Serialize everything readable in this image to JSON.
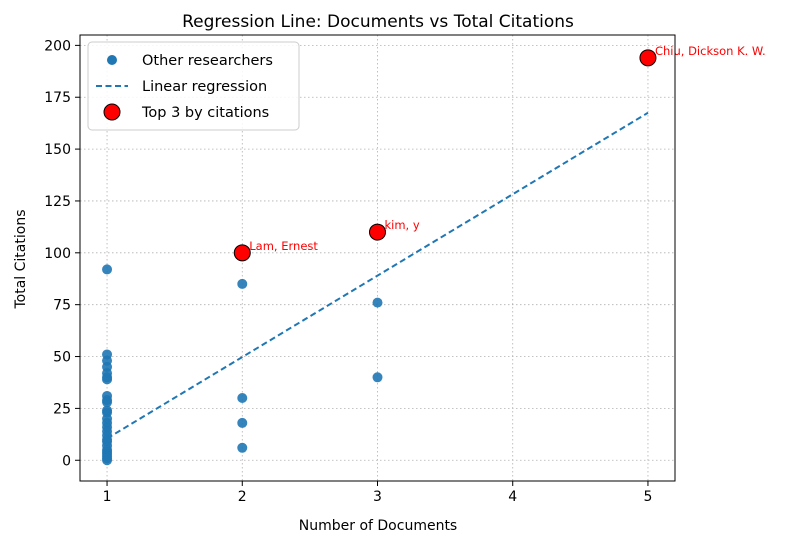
{
  "chart_data": {
    "type": "scatter",
    "title": "Regression Line: Documents vs Total Citations",
    "xlabel": "Number of Documents",
    "ylabel": "Total Citations",
    "xlim": [
      0.8,
      5.2
    ],
    "ylim": [
      -10,
      205
    ],
    "xticks": [
      1,
      2,
      3,
      4,
      5
    ],
    "yticks": [
      0,
      25,
      50,
      75,
      100,
      125,
      150,
      175,
      200
    ],
    "grid": true,
    "legend_position": "upper-left",
    "series": [
      {
        "name": "Other researchers",
        "kind": "scatter",
        "color": "#1f77b4",
        "points": [
          [
            1,
            92
          ],
          [
            1,
            51
          ],
          [
            1,
            48
          ],
          [
            1,
            45
          ],
          [
            1,
            42
          ],
          [
            1,
            40
          ],
          [
            1,
            39
          ],
          [
            1,
            31
          ],
          [
            1,
            29
          ],
          [
            1,
            28
          ],
          [
            1,
            24
          ],
          [
            1,
            23
          ],
          [
            1,
            20
          ],
          [
            1,
            18
          ],
          [
            1,
            16
          ],
          [
            1,
            14
          ],
          [
            1,
            12
          ],
          [
            1,
            10
          ],
          [
            1,
            9
          ],
          [
            1,
            7
          ],
          [
            1,
            5
          ],
          [
            1,
            4
          ],
          [
            1,
            3
          ],
          [
            1,
            2
          ],
          [
            1,
            1
          ],
          [
            1,
            0
          ],
          [
            2,
            85
          ],
          [
            2,
            30
          ],
          [
            2,
            18
          ],
          [
            2,
            6
          ],
          [
            3,
            76
          ],
          [
            3,
            40
          ]
        ]
      },
      {
        "name": "Linear regression",
        "kind": "line",
        "color": "#1f77b4",
        "style": "dashed",
        "points": [
          [
            1,
            10.5
          ],
          [
            5,
            167.5
          ]
        ]
      },
      {
        "name": "Top 3 by citations",
        "kind": "highlight",
        "color": "#ff0000",
        "points": [
          {
            "x": 2,
            "y": 100,
            "label": "Lam, Ernest"
          },
          {
            "x": 3,
            "y": 110,
            "label": "kim, y"
          },
          {
            "x": 5,
            "y": 194,
            "label": "Chiu, Dickson K. W."
          }
        ]
      }
    ]
  }
}
